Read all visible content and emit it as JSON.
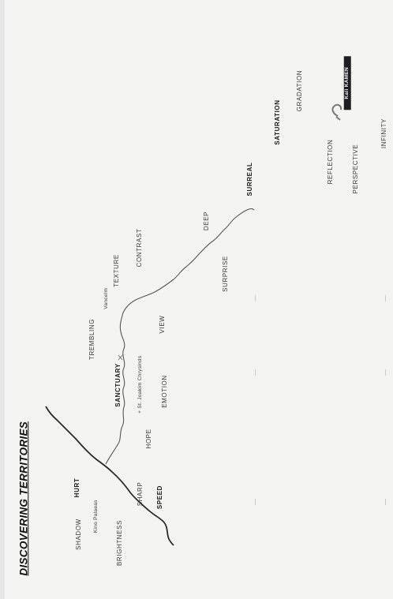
{
  "title": "DISCOVERING TERRITORIES",
  "labels": {
    "shadow": "SHADOW",
    "hurt": "HURT",
    "kino_palaeas": "Kino Palaeas",
    "brightness": "BRIGHTNESS",
    "sharp": "SHARP",
    "speed": "SPEED",
    "sanctuary": "SANCTUARY",
    "trembling": "TREMBLING",
    "vancelm": "Vancelm",
    "texture": "TEXTURE",
    "contrast": "CONTRAST",
    "st_joakim": "+ St. Joakim Chrysinds",
    "hope": "HOPE",
    "emotion": "EMOTION",
    "view": "VIEW",
    "deep": "DEEP",
    "surprise": "SURPRISE",
    "surreal": "SURREAL",
    "saturation": "SATURATION",
    "gradation": "GRADATION",
    "reflection": "REFLECTION",
    "perspective": "PERSPECTIVE",
    "infinity": "INFINITY",
    "kamen": "Kali KAMEN"
  }
}
